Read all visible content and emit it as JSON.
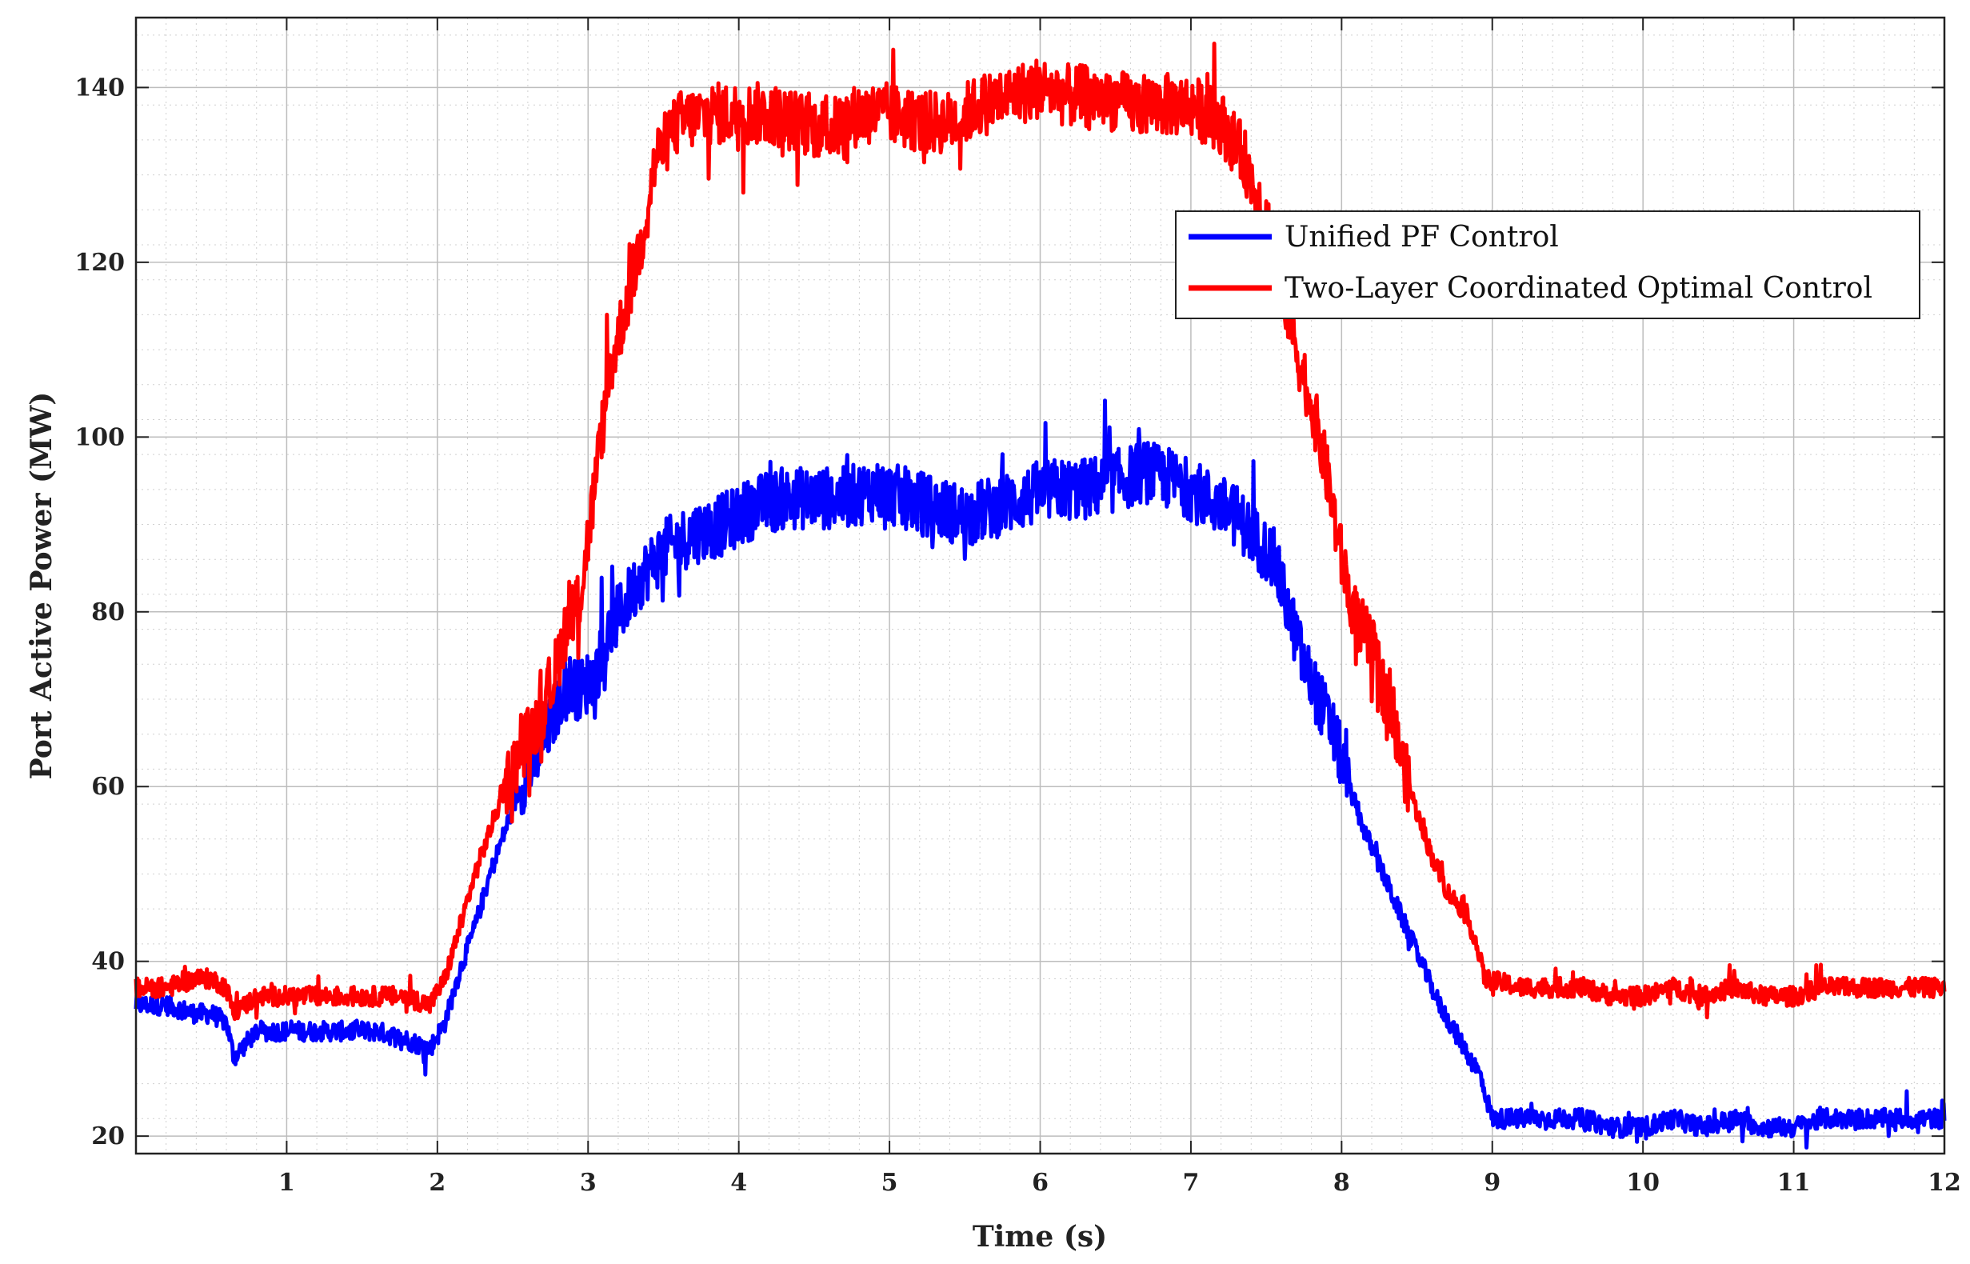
{
  "chart_data": {
    "type": "line",
    "title": "",
    "xlabel": "Time (s)",
    "ylabel": "Port Active Power (MW)",
    "xlim": [
      0,
      12
    ],
    "ylim": [
      18,
      148
    ],
    "xticks": [
      1,
      2,
      3,
      4,
      5,
      6,
      7,
      8,
      9,
      10,
      11,
      12
    ],
    "yticks": [
      20,
      40,
      60,
      80,
      100,
      120,
      140
    ],
    "grid": true,
    "minor_grid": true,
    "legend_position": "upper-right",
    "series": [
      {
        "name": "Unified PF Control",
        "color": "#0000ff",
        "x": [
          0,
          0.2,
          0.4,
          0.5,
          0.6,
          0.65,
          0.8,
          1.0,
          1.2,
          1.4,
          1.6,
          1.8,
          1.95,
          2.05,
          2.15,
          2.25,
          2.35,
          2.45,
          2.55,
          2.65,
          2.75,
          2.85,
          2.95,
          3.05,
          3.15,
          3.25,
          3.35,
          3.5,
          3.7,
          3.9,
          4.1,
          4.3,
          4.5,
          4.7,
          4.9,
          5.1,
          5.3,
          5.5,
          5.7,
          5.9,
          6.1,
          6.3,
          6.5,
          6.7,
          6.9,
          7.1,
          7.3,
          7.45,
          7.55,
          7.65,
          7.75,
          7.85,
          7.95,
          8.05,
          8.15,
          8.25,
          8.35,
          8.45,
          8.55,
          8.65,
          8.75,
          8.85,
          8.92,
          9.0,
          9.2,
          9.4,
          9.6,
          9.8,
          10.0,
          10.2,
          10.4,
          10.6,
          10.8,
          11.0,
          11.2,
          11.4,
          11.6,
          11.8,
          12.0
        ],
        "values": [
          35,
          35,
          34,
          34,
          33,
          29,
          32,
          32,
          32,
          32,
          32,
          31,
          30,
          33,
          39,
          44,
          50,
          55,
          60,
          63,
          67,
          72,
          71,
          73,
          78,
          81,
          84,
          87,
          89,
          90,
          92,
          93,
          93,
          93,
          94,
          93,
          92,
          91,
          92,
          93,
          94,
          94,
          95,
          96,
          95,
          93,
          91,
          88,
          86,
          80,
          74,
          70,
          66,
          60,
          55,
          51,
          47,
          43,
          39,
          35,
          32,
          29,
          27,
          22,
          22,
          22,
          22,
          21,
          21,
          22,
          21,
          22,
          21,
          21,
          22,
          22,
          22,
          22,
          22
        ]
      },
      {
        "name": "Two-Layer Coordinated Optimal Control",
        "color": "#ff0000",
        "x": [
          0,
          0.2,
          0.4,
          0.5,
          0.6,
          0.65,
          0.8,
          1.0,
          1.2,
          1.4,
          1.6,
          1.8,
          1.95,
          2.05,
          2.15,
          2.25,
          2.35,
          2.45,
          2.55,
          2.65,
          2.75,
          2.85,
          2.95,
          3.05,
          3.15,
          3.25,
          3.35,
          3.45,
          3.6,
          3.8,
          4.0,
          4.2,
          4.4,
          4.6,
          4.8,
          5.0,
          5.2,
          5.4,
          5.6,
          5.8,
          6.0,
          6.2,
          6.4,
          6.6,
          6.8,
          7.0,
          7.2,
          7.35,
          7.5,
          7.6,
          7.7,
          7.8,
          7.9,
          8.0,
          8.1,
          8.2,
          8.3,
          8.4,
          8.5,
          8.6,
          8.7,
          8.8,
          8.88,
          8.95,
          9.2,
          9.4,
          9.6,
          9.8,
          10.0,
          10.2,
          10.4,
          10.6,
          10.8,
          11.0,
          11.2,
          11.4,
          11.6,
          11.8,
          12.0
        ],
        "values": [
          37,
          37,
          38,
          38,
          37,
          34,
          36,
          36,
          36,
          36,
          36,
          36,
          35,
          38,
          44,
          50,
          55,
          60,
          64,
          67,
          71,
          78,
          82,
          95,
          108,
          115,
          122,
          132,
          136,
          137,
          137,
          137,
          136,
          135,
          137,
          137,
          136,
          136,
          138,
          139,
          140,
          139,
          139,
          138,
          138,
          138,
          136,
          132,
          125,
          118,
          110,
          104,
          96,
          86,
          79,
          76,
          70,
          63,
          57,
          52,
          48,
          46,
          43,
          38,
          37,
          37,
          37,
          36,
          36,
          37,
          36,
          37,
          36,
          36,
          37,
          37,
          37,
          37,
          37
        ]
      }
    ]
  }
}
